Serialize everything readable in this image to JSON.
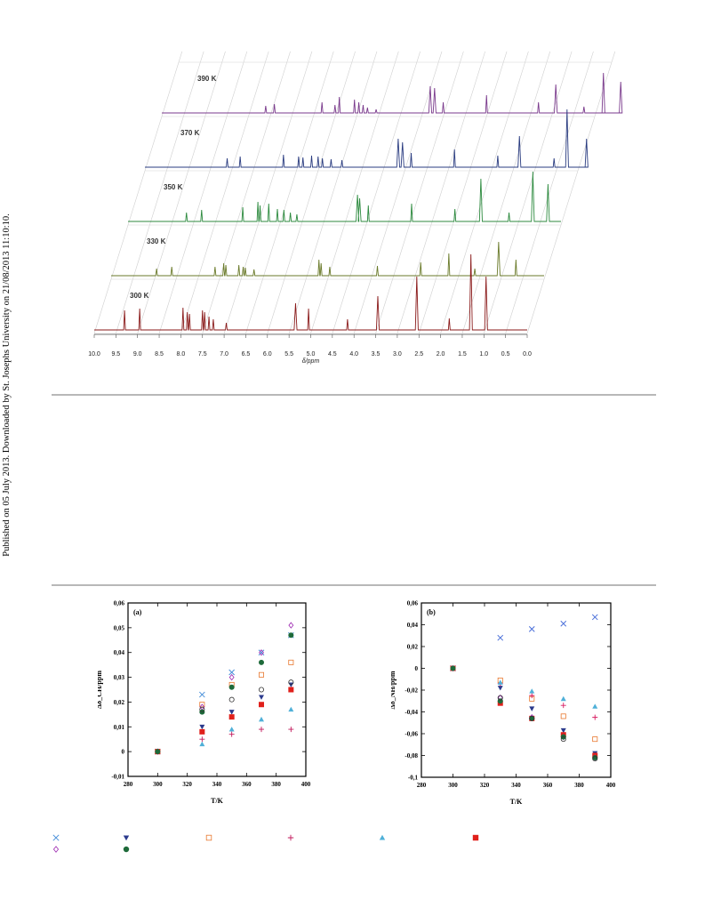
{
  "side_note": "Published on 05 July 2013. Downloaded by St. Josephs University on 21/08/2013 11:10:10.",
  "nmr": {
    "x_ticks": [
      "10.0",
      "9.5",
      "9.0",
      "8.5",
      "8.0",
      "7.5",
      "7.0",
      "6.5",
      "6.0",
      "5.5",
      "5.0",
      "4.5",
      "4.0",
      "3.5",
      "3.0",
      "2.5",
      "2.0",
      "1.5",
      "1.0",
      "0.5",
      "0.0"
    ],
    "x_label": "δ/ppm",
    "spectra": [
      {
        "label": "390 K",
        "color": "#7a3a8c",
        "peaks": [
          [
            7.6,
            8
          ],
          [
            7.4,
            10
          ],
          [
            6.3,
            12
          ],
          [
            6.0,
            9
          ],
          [
            5.9,
            18
          ],
          [
            5.55,
            15
          ],
          [
            5.45,
            12
          ],
          [
            5.35,
            9
          ],
          [
            5.25,
            6
          ],
          [
            5.05,
            4
          ],
          [
            3.8,
            30
          ],
          [
            3.7,
            28
          ],
          [
            3.5,
            12
          ],
          [
            2.5,
            20
          ],
          [
            1.3,
            12
          ],
          [
            0.9,
            32
          ],
          [
            0.25,
            7
          ],
          [
            -0.2,
            45
          ],
          [
            -0.6,
            35
          ]
        ]
      },
      {
        "label": "370 K",
        "color": "#2a3c80",
        "peaks": [
          [
            8.1,
            10
          ],
          [
            7.8,
            12
          ],
          [
            6.8,
            14
          ],
          [
            6.45,
            12
          ],
          [
            6.35,
            11
          ],
          [
            6.15,
            13
          ],
          [
            6.0,
            12
          ],
          [
            5.9,
            10
          ],
          [
            5.7,
            9
          ],
          [
            5.45,
            8
          ],
          [
            4.15,
            32
          ],
          [
            4.05,
            28
          ],
          [
            3.85,
            16
          ],
          [
            2.85,
            20
          ],
          [
            1.85,
            13
          ],
          [
            1.35,
            35
          ],
          [
            0.55,
            10
          ],
          [
            0.25,
            65
          ],
          [
            -0.2,
            32
          ]
        ]
      },
      {
        "label": "350 K",
        "color": "#2c8a3e",
        "peaks": [
          [
            8.65,
            10
          ],
          [
            8.3,
            13
          ],
          [
            7.35,
            16
          ],
          [
            7.0,
            22
          ],
          [
            6.95,
            18
          ],
          [
            6.75,
            20
          ],
          [
            6.55,
            14
          ],
          [
            6.4,
            13
          ],
          [
            6.25,
            10
          ],
          [
            6.1,
            8
          ],
          [
            4.7,
            30
          ],
          [
            4.65,
            26
          ],
          [
            4.45,
            18
          ],
          [
            3.45,
            20
          ],
          [
            2.45,
            14
          ],
          [
            1.85,
            48
          ],
          [
            1.2,
            10
          ],
          [
            0.65,
            56
          ],
          [
            0.3,
            42
          ]
        ]
      },
      {
        "label": "330 K",
        "color": "#6a7a2a",
        "peaks": [
          [
            8.95,
            8
          ],
          [
            8.6,
            10
          ],
          [
            7.6,
            10
          ],
          [
            7.4,
            14
          ],
          [
            7.35,
            12
          ],
          [
            7.05,
            12
          ],
          [
            6.95,
            10
          ],
          [
            6.9,
            9
          ],
          [
            6.7,
            7
          ],
          [
            5.2,
            18
          ],
          [
            5.15,
            14
          ],
          [
            4.95,
            10
          ],
          [
            3.85,
            11
          ],
          [
            2.85,
            15
          ],
          [
            2.2,
            25
          ],
          [
            1.6,
            8
          ],
          [
            1.05,
            38
          ],
          [
            0.65,
            18
          ]
        ]
      },
      {
        "label": "300 K",
        "color": "#8a1a1a",
        "peaks": [
          [
            9.3,
            22
          ],
          [
            8.95,
            24
          ],
          [
            7.95,
            25
          ],
          [
            7.85,
            20
          ],
          [
            7.8,
            18
          ],
          [
            7.5,
            22
          ],
          [
            7.45,
            20
          ],
          [
            7.35,
            15
          ],
          [
            7.25,
            12
          ],
          [
            6.95,
            8
          ],
          [
            5.35,
            30
          ],
          [
            5.05,
            24
          ],
          [
            4.15,
            12
          ],
          [
            3.45,
            38
          ],
          [
            2.55,
            60
          ],
          [
            1.8,
            13
          ],
          [
            1.3,
            85
          ],
          [
            0.95,
            60
          ]
        ]
      }
    ]
  },
  "chart_data": [
    {
      "type": "scatter",
      "title": "(a)",
      "xlabel": "T/K",
      "ylabel": "Δδ_CH/ppm",
      "xlim": [
        280,
        400
      ],
      "ylim": [
        -0.01,
        0.06
      ],
      "x_ticks": [
        "280",
        "300",
        "320",
        "340",
        "360",
        "380",
        "400"
      ],
      "y_ticks": [
        "-0,01",
        "0",
        "0,01",
        "0,02",
        "0,03",
        "0,04",
        "0,05",
        "0,06"
      ],
      "series": [
        {
          "marker": "x",
          "color": "#4a90d9",
          "points": [
            [
              300,
              0
            ],
            [
              330,
              0.023
            ],
            [
              350,
              0.032
            ],
            [
              370,
              0.04
            ],
            [
              390,
              0.047
            ]
          ]
        },
        {
          "marker": "tri-down",
          "color": "#2b3a8c",
          "points": [
            [
              300,
              0
            ],
            [
              330,
              0.01
            ],
            [
              350,
              0.016
            ],
            [
              370,
              0.022
            ],
            [
              390,
              0.027
            ]
          ]
        },
        {
          "marker": "square-open",
          "color": "#e8772e",
          "points": [
            [
              300,
              0
            ],
            [
              330,
              0.019
            ],
            [
              350,
              0.027
            ],
            [
              370,
              0.031
            ],
            [
              390,
              0.036
            ]
          ]
        },
        {
          "marker": "plus",
          "color": "#c2185b",
          "points": [
            [
              300,
              0
            ],
            [
              330,
              0.005
            ],
            [
              350,
              0.007
            ],
            [
              370,
              0.009
            ],
            [
              390,
              0.009
            ]
          ]
        },
        {
          "marker": "tri-up",
          "color": "#4fb0d8",
          "points": [
            [
              300,
              0
            ],
            [
              330,
              0.003
            ],
            [
              350,
              0.009
            ],
            [
              370,
              0.013
            ],
            [
              390,
              0.017
            ]
          ]
        },
        {
          "marker": "square",
          "color": "#e0201b",
          "points": [
            [
              300,
              0
            ],
            [
              330,
              0.008
            ],
            [
              350,
              0.014
            ],
            [
              370,
              0.019
            ],
            [
              390,
              0.025
            ]
          ]
        },
        {
          "marker": "diamond-open",
          "color": "#9c27b0",
          "points": [
            [
              300,
              0
            ],
            [
              330,
              0.018
            ],
            [
              350,
              0.03
            ],
            [
              370,
              0.04
            ],
            [
              390,
              0.051
            ]
          ]
        },
        {
          "marker": "circle",
          "color": "#1e6a3a",
          "points": [
            [
              300,
              0
            ],
            [
              330,
              0.016
            ],
            [
              350,
              0.026
            ],
            [
              370,
              0.036
            ],
            [
              390,
              0.047
            ]
          ]
        },
        {
          "marker": "circle-open",
          "color": "#333333",
          "points": [
            [
              330,
              0.017
            ],
            [
              350,
              0.021
            ],
            [
              370,
              0.025
            ],
            [
              390,
              0.028
            ]
          ]
        }
      ]
    },
    {
      "type": "scatter",
      "title": "(b)",
      "xlabel": "T/K",
      "ylabel": "Δδ_NH/ppm",
      "xlim": [
        280,
        400
      ],
      "ylim": [
        -0.1,
        0.06
      ],
      "x_ticks": [
        "280",
        "300",
        "320",
        "340",
        "360",
        "380",
        "400"
      ],
      "y_ticks": [
        "-0,1",
        "-0,08",
        "-0,06",
        "-0,04",
        "-0,02",
        "0",
        "0,02",
        "0,04",
        "0,06"
      ],
      "series": [
        {
          "marker": "x",
          "color": "#4a6fd9",
          "points": [
            [
              300,
              0
            ],
            [
              330,
              0.028
            ],
            [
              350,
              0.036
            ],
            [
              370,
              0.041
            ],
            [
              390,
              0.047
            ]
          ]
        },
        {
          "marker": "tri-down",
          "color": "#2b3a8c",
          "points": [
            [
              300,
              0
            ],
            [
              330,
              -0.018
            ],
            [
              350,
              -0.037
            ],
            [
              370,
              -0.057
            ],
            [
              390,
              -0.078
            ]
          ]
        },
        {
          "marker": "square-open",
          "color": "#e8772e",
          "points": [
            [
              300,
              0
            ],
            [
              330,
              -0.011
            ],
            [
              350,
              -0.028
            ],
            [
              370,
              -0.044
            ],
            [
              390,
              -0.065
            ]
          ]
        },
        {
          "marker": "plus",
          "color": "#d81b60",
          "points": [
            [
              300,
              0
            ],
            [
              330,
              -0.014
            ],
            [
              350,
              -0.025
            ],
            [
              370,
              -0.034
            ],
            [
              390,
              -0.045
            ]
          ]
        },
        {
          "marker": "tri-up",
          "color": "#4fb0d8",
          "points": [
            [
              300,
              0
            ],
            [
              330,
              -0.013
            ],
            [
              350,
              -0.021
            ],
            [
              370,
              -0.028
            ],
            [
              390,
              -0.035
            ]
          ]
        },
        {
          "marker": "square",
          "color": "#e0201b",
          "points": [
            [
              300,
              0
            ],
            [
              330,
              -0.032
            ],
            [
              350,
              -0.046
            ],
            [
              370,
              -0.061
            ],
            [
              390,
              -0.08
            ]
          ]
        },
        {
          "marker": "diamond-open",
          "color": "#9c27b0",
          "points": [
            [
              300,
              0
            ],
            [
              330,
              -0.027
            ],
            [
              350,
              -0.045
            ],
            [
              370,
              -0.063
            ],
            [
              390,
              -0.082
            ]
          ]
        },
        {
          "marker": "circle",
          "color": "#1e6a3a",
          "points": [
            [
              300,
              0
            ],
            [
              330,
              -0.03
            ],
            [
              350,
              -0.046
            ],
            [
              370,
              -0.063
            ],
            [
              390,
              -0.082
            ]
          ]
        },
        {
          "marker": "circle-open",
          "color": "#333333",
          "points": [
            [
              330,
              -0.027
            ],
            [
              350,
              -0.046
            ],
            [
              370,
              -0.065
            ],
            [
              390,
              -0.083
            ]
          ]
        }
      ]
    }
  ],
  "legend": [
    {
      "marker": "x",
      "color": "#4a90d9"
    },
    {
      "marker": "tri-down",
      "color": "#2b3a8c"
    },
    {
      "marker": "square-open",
      "color": "#e8772e"
    },
    {
      "marker": "plus",
      "color": "#c2185b"
    },
    {
      "marker": "tri-up",
      "color": "#4fb0d8"
    },
    {
      "marker": "square",
      "color": "#e0201b"
    },
    {
      "marker": "diamond-open",
      "color": "#9c27b0"
    },
    {
      "marker": "circle",
      "color": "#1e6a3a"
    }
  ]
}
